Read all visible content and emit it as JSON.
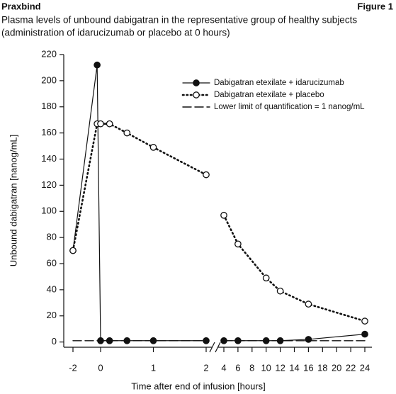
{
  "header": {
    "left": "Praxbind",
    "right": "Figure 1"
  },
  "chart_data": {
    "type": "line",
    "title": "Plasma levels of unbound dabigatran in the representative group of healthy subjects",
    "subtitle": "(administration of idarucizumab or placebo at 0 hours)",
    "x_label": "Time after end of infusion [hours]",
    "y_label": "Unbound dabigatran [nanog/mL]",
    "xlim": [
      [
        -2,
        2
      ],
      [
        4,
        24
      ]
    ],
    "xticks": [
      -2,
      0,
      1,
      2,
      4,
      6,
      8,
      10,
      12,
      14,
      16,
      18,
      20,
      22,
      24
    ],
    "ylim": [
      -4,
      220
    ],
    "yticks": [
      0,
      20,
      40,
      60,
      80,
      100,
      120,
      140,
      160,
      180,
      200,
      220
    ],
    "legend": "upper right",
    "series": [
      {
        "name": "Dabigatran etexilate + idarucizumab",
        "color": "#111111",
        "marker": "filled",
        "dash": "solid",
        "x": [
          -2,
          -0.25,
          0,
          0.17,
          0.5,
          1,
          2,
          4,
          6,
          10,
          12,
          16,
          24
        ],
        "values": [
          70,
          212,
          1,
          1,
          1,
          1,
          1,
          1,
          1,
          1,
          1,
          2,
          6
        ]
      },
      {
        "name": "Dabigatran etexilate + placebo",
        "color": "#111111",
        "marker": "open",
        "dash": "dotted",
        "x": [
          -2,
          -0.25,
          0,
          0.17,
          0.5,
          1,
          2,
          4,
          6,
          10,
          12,
          16,
          24
        ],
        "values": [
          70,
          167,
          167,
          167,
          160,
          149,
          128,
          97,
          75,
          49,
          39,
          29,
          16
        ]
      },
      {
        "name": "Lower limit of quantification = 1 nanog/mL",
        "color": "#111111",
        "marker": "none",
        "dash": "dashed",
        "x": [
          -2,
          2,
          4,
          24
        ],
        "values": [
          1,
          1,
          1,
          1
        ]
      }
    ]
  }
}
